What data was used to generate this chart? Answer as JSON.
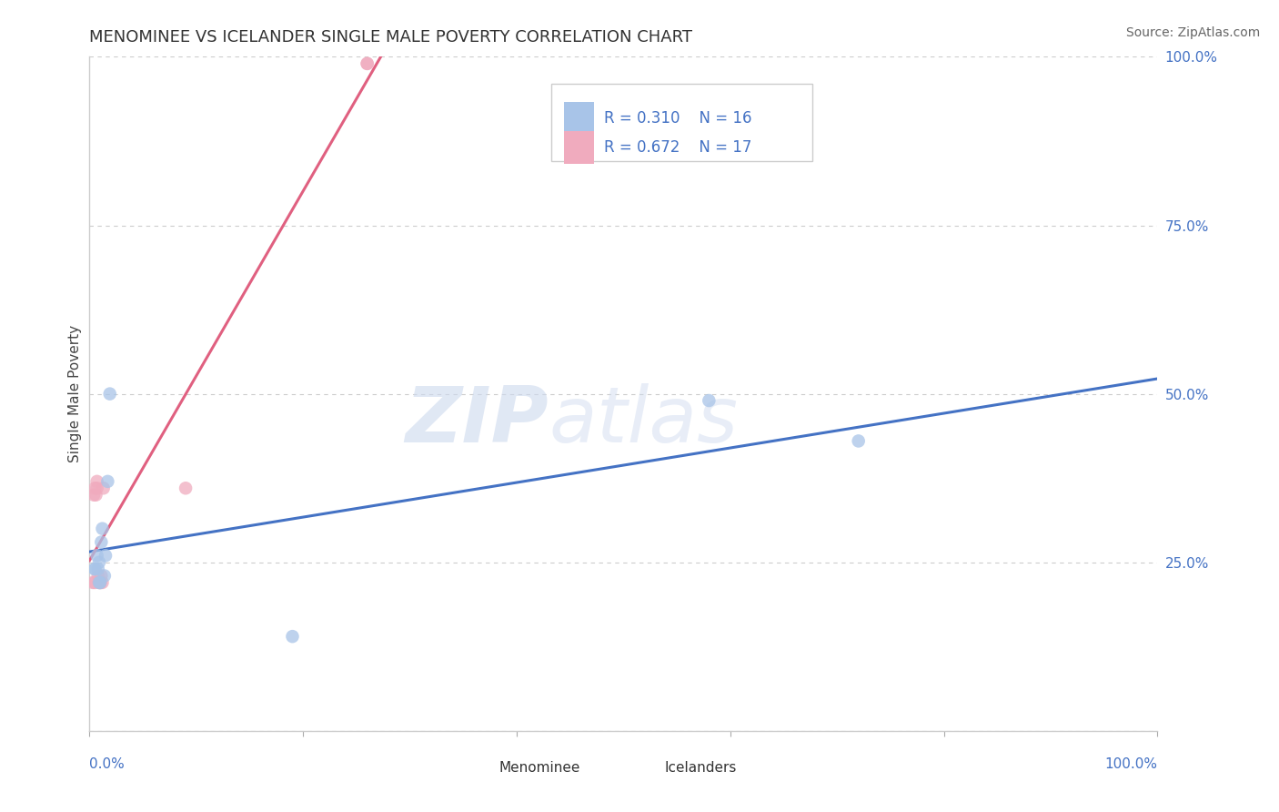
{
  "title": "MENOMINEE VS ICELANDER SINGLE MALE POVERTY CORRELATION CHART",
  "source": "Source: ZipAtlas.com",
  "ylabel": "Single Male Poverty",
  "watermark_zip": "ZIP",
  "watermark_atlas": "atlas",
  "menominee_R": "0.310",
  "menominee_N": "16",
  "icelander_R": "0.672",
  "icelander_N": "17",
  "menominee_color": "#a8c4e8",
  "icelander_color": "#f0abbe",
  "menominee_line_color": "#4472c4",
  "icelander_line_color": "#e06080",
  "tick_label_color": "#4472c4",
  "menominee_x": [
    0.005,
    0.005,
    0.007,
    0.008,
    0.009,
    0.009,
    0.01,
    0.011,
    0.012,
    0.014,
    0.015,
    0.017,
    0.019,
    0.58,
    0.72,
    0.19
  ],
  "menominee_y": [
    0.24,
    0.24,
    0.26,
    0.24,
    0.25,
    0.22,
    0.22,
    0.28,
    0.3,
    0.23,
    0.26,
    0.37,
    0.5,
    0.49,
    0.43,
    0.14
  ],
  "icelander_x": [
    0.003,
    0.004,
    0.005,
    0.005,
    0.006,
    0.007,
    0.007,
    0.008,
    0.009,
    0.01,
    0.01,
    0.011,
    0.012,
    0.013,
    0.09,
    0.26,
    0.26
  ],
  "icelander_y": [
    0.22,
    0.35,
    0.36,
    0.22,
    0.35,
    0.36,
    0.37,
    0.23,
    0.22,
    0.22,
    0.22,
    0.23,
    0.22,
    0.36,
    0.36,
    0.99,
    0.99
  ],
  "xlim": [
    0.0,
    1.0
  ],
  "ylim": [
    0.0,
    1.0
  ],
  "yticks": [
    0.0,
    0.25,
    0.5,
    0.75,
    1.0
  ],
  "ytick_labels": [
    "",
    "25.0%",
    "50.0%",
    "75.0%",
    "100.0%"
  ],
  "background_color": "#ffffff",
  "grid_color": "#cccccc",
  "legend_box_color": "#dddddd",
  "title_fontsize": 13,
  "tick_fontsize": 11,
  "source_fontsize": 10
}
